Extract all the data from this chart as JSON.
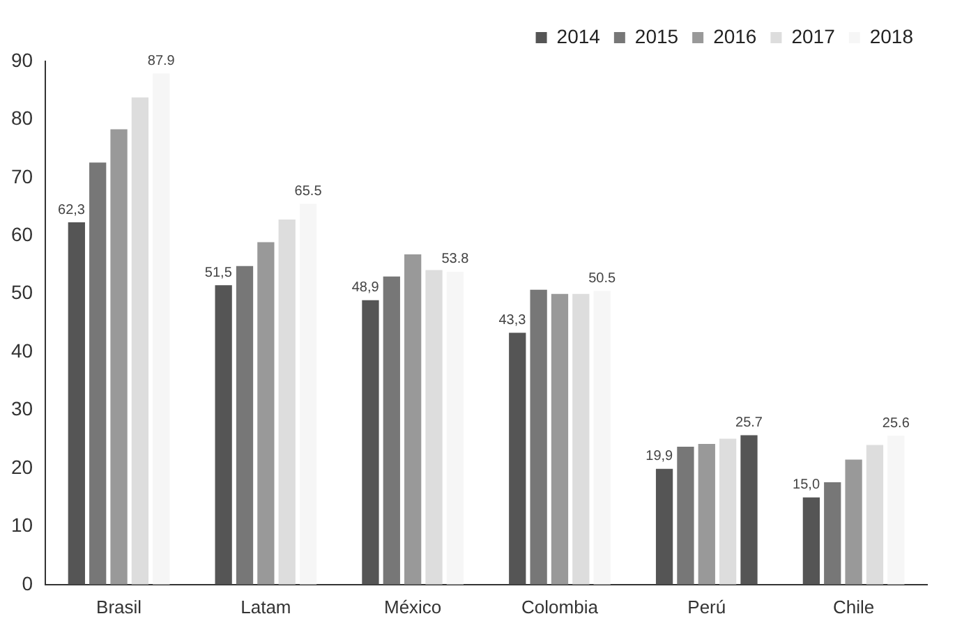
{
  "chart_data": {
    "type": "bar",
    "categories": [
      "Brasil",
      "Latam",
      "México",
      "Colombia",
      "Perú",
      "Chile"
    ],
    "series": [
      {
        "name": "2014",
        "color": "#555555",
        "values": [
          62.3,
          51.5,
          48.9,
          43.3,
          19.9,
          15.0
        ],
        "value_labels": [
          "62,3",
          "51,5",
          "48,9",
          "43,3",
          "19,9",
          "15,0"
        ]
      },
      {
        "name": "2015",
        "color": "#777777",
        "values": [
          72.6,
          54.8,
          53.0,
          50.7,
          23.7,
          17.6
        ]
      },
      {
        "name": "2016",
        "color": "#999999",
        "values": [
          78.3,
          58.9,
          56.8,
          50.0,
          24.2,
          21.5
        ]
      },
      {
        "name": "2017",
        "color": "#dddddd",
        "values": [
          83.8,
          62.8,
          54.1,
          50.0,
          25.1,
          24.0
        ]
      },
      {
        "name": "2018",
        "color": "#f6f6f6",
        "colors": [
          "#f6f6f6",
          "#f6f6f6",
          "#f6f6f6",
          "#f6f6f6",
          "#555555",
          "#f6f6f6"
        ],
        "values": [
          87.9,
          65.5,
          53.8,
          50.5,
          25.7,
          25.6
        ],
        "value_labels": [
          "87.9",
          "65.5",
          "53.8",
          "50.5",
          "25.7",
          "25.6"
        ]
      }
    ],
    "ylim": [
      0,
      90
    ],
    "yticks": [
      0,
      10,
      20,
      30,
      40,
      50,
      60,
      70,
      80,
      90
    ],
    "grid": false,
    "legend": "top right"
  }
}
